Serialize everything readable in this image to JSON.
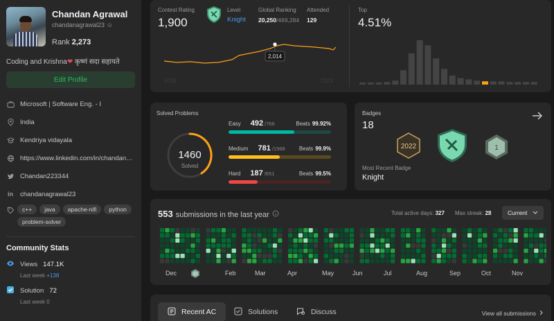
{
  "profile": {
    "name": "Chandan Agrawal",
    "username": "chandanagrawal23",
    "rank_label": "Rank",
    "rank_value": "2,273",
    "bio": "Coding and Krishna",
    "bio_suffix": "कृष्णं सदा सहायते",
    "edit_label": "Edit Profile",
    "info": [
      {
        "icon": "briefcase-icon",
        "text": "Microsoft | Software Eng. - I"
      },
      {
        "icon": "location-icon",
        "text": "India"
      },
      {
        "icon": "school-icon",
        "text": "Kendriya vidayala"
      },
      {
        "icon": "globe-icon",
        "text": "https://www.linkedin.com/in/chandan…"
      },
      {
        "icon": "twitter-icon",
        "text": "Chandan223344"
      },
      {
        "icon": "linkedin-icon",
        "text": "chandanagrawal23"
      }
    ],
    "skills": [
      "c++",
      "java",
      "apache-nifi",
      "python",
      "problem-solver"
    ]
  },
  "community": {
    "title": "Community Stats",
    "views_label": "Views",
    "views_value": "147.1K",
    "views_sub": "Last week",
    "views_delta": "+138",
    "solution_label": "Solution",
    "solution_value": "72",
    "solution_sub": "Last week",
    "solution_delta": "0"
  },
  "contest": {
    "rating_label": "Contest Rating",
    "rating_value": "1,900",
    "level_label": "Level",
    "level_value": "Knight",
    "global_label": "Global Ranking",
    "global_value": "20,250",
    "global_total": "/469,284",
    "attended_label": "Attended",
    "attended_value": "129",
    "top_label": "Top",
    "top_value": "4.51%",
    "tooltip": "2,014",
    "year_start": "2019",
    "year_end": "2023",
    "histogram": [
      3,
      3,
      3,
      4,
      6,
      22,
      48,
      68,
      60,
      40,
      24,
      14,
      10,
      8,
      6,
      5,
      5,
      5,
      4,
      4,
      4,
      4
    ]
  },
  "solved": {
    "title": "Solved Problems",
    "total": "1460",
    "total_label": "Solved",
    "easy_label": "Easy",
    "easy_count": "492",
    "easy_total": "/766",
    "easy_beats": "99.92%",
    "easy_frac": 0.642,
    "medium_label": "Medium",
    "medium_count": "781",
    "medium_total": "/1568",
    "medium_beats": "99.9%",
    "medium_frac": 0.498,
    "hard_label": "Hard",
    "hard_count": "187",
    "hard_total": "/651",
    "hard_beats": "99.5%",
    "hard_frac": 0.287,
    "beats_label": "Beats"
  },
  "badges": {
    "title": "Badges",
    "count": "18",
    "recent_label": "Most Recent Badge",
    "recent_value": "Knight",
    "badge_year": "2022"
  },
  "submissions": {
    "count": "553",
    "text": "submissions in the last year",
    "active_label": "Total active days:",
    "active_value": "327",
    "streak_label": "Max streak:",
    "streak_value": "28",
    "dropdown": "Current",
    "months": [
      "Dec",
      "Feb",
      "Mar",
      "Apr",
      "May",
      "Jun",
      "Jul",
      "Aug",
      "Sep",
      "Oct",
      "Nov"
    ]
  },
  "tabs": {
    "recent": "Recent AC",
    "solutions": "Solutions",
    "discuss": "Discuss",
    "view_all": "View all submissions"
  },
  "colors": {
    "easy": "#00b8a3",
    "medium": "#ffc01e",
    "hard": "#ef4743",
    "accent_green": "#2cbb5d",
    "link_blue": "#4a9bea",
    "rating_line": "#ffa116"
  }
}
